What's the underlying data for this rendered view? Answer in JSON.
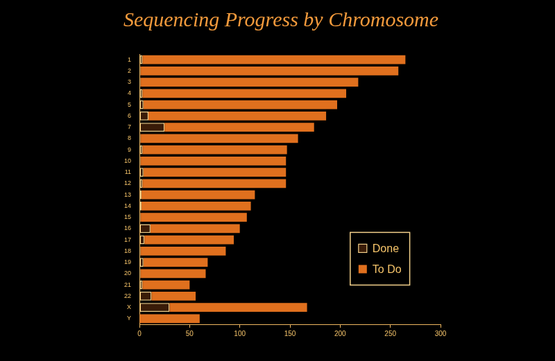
{
  "chart_data": {
    "type": "bar",
    "title": "Sequencing Progress by Chromosome",
    "orientation": "horizontal",
    "stacked": true,
    "grid": false,
    "legend": "lower right",
    "categories": [
      "1",
      "2",
      "3",
      "4",
      "5",
      "6",
      "7",
      "8",
      "9",
      "10",
      "11",
      "12",
      "13",
      "14",
      "15",
      "16",
      "17",
      "18",
      "19",
      "20",
      "21",
      "22",
      "X",
      "Y"
    ],
    "series": [
      {
        "name": "Done",
        "color": "#3a1c08",
        "values": [
          3,
          1,
          1,
          3,
          4,
          9,
          25,
          1,
          3,
          1,
          4,
          3,
          2,
          2,
          1,
          11,
          5,
          1,
          4,
          1,
          3,
          12,
          30,
          0
        ]
      },
      {
        "name": "To Do",
        "color": "#e0701e",
        "values": [
          262,
          257,
          217,
          203,
          193,
          177,
          149,
          157,
          144,
          145,
          142,
          143,
          113,
          109,
          106,
          89,
          89,
          85,
          64,
          65,
          47,
          44,
          137,
          60
        ]
      }
    ],
    "xlim": [
      0,
      300
    ],
    "xticks": [
      0,
      50,
      100,
      150,
      200,
      250,
      300
    ]
  }
}
